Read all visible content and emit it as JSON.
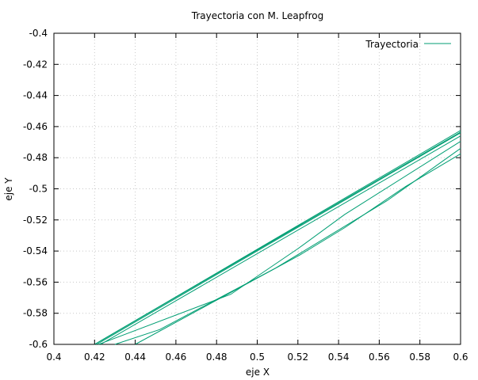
{
  "chart_data": {
    "type": "line",
    "title": "Trayectoria con M. Leapfrog",
    "xlabel": "eje X",
    "ylabel": "eje Y",
    "xlim": [
      0.4,
      0.6
    ],
    "ylim": [
      -0.6,
      -0.4
    ],
    "x_ticks": [
      "0.4",
      "0.42",
      "0.44",
      "0.46",
      "0.48",
      "0.5",
      "0.52",
      "0.54",
      "0.56",
      "0.58",
      "0.6"
    ],
    "y_ticks": [
      "-0.4",
      "-0.42",
      "-0.44",
      "-0.46",
      "-0.48",
      "-0.5",
      "-0.52",
      "-0.54",
      "-0.56",
      "-0.58",
      "-0.6"
    ],
    "grid": true,
    "legend_position": "top-right",
    "series_color": "#009e73",
    "series": [
      {
        "name": "Trayectoria",
        "segments": [
          [
            [
              0.42,
              -0.6
            ],
            [
              0.6,
              -0.4625
            ]
          ],
          [
            [
              0.42,
              -0.6
            ],
            [
              0.6,
              -0.4635
            ]
          ],
          [
            [
              0.421,
              -0.6
            ],
            [
              0.6,
              -0.464
            ]
          ],
          [
            [
              0.423,
              -0.6
            ],
            [
              0.6,
              -0.466
            ]
          ],
          [
            [
              0.422,
              -0.6
            ],
            [
              0.487,
              -0.5678
            ],
            [
              0.52,
              -0.5385
            ],
            [
              0.543,
              -0.5165
            ],
            [
              0.6,
              -0.4695
            ]
          ],
          [
            [
              0.43,
              -0.6
            ],
            [
              0.452,
              -0.5905
            ],
            [
              0.509,
              -0.551
            ],
            [
              0.564,
              -0.5075
            ],
            [
              0.6,
              -0.474
            ]
          ],
          [
            [
              0.44,
              -0.6
            ],
            [
              0.521,
              -0.5425
            ],
            [
              0.543,
              -0.525
            ],
            [
              0.573,
              -0.4985
            ],
            [
              0.6,
              -0.4775
            ]
          ]
        ]
      }
    ]
  }
}
